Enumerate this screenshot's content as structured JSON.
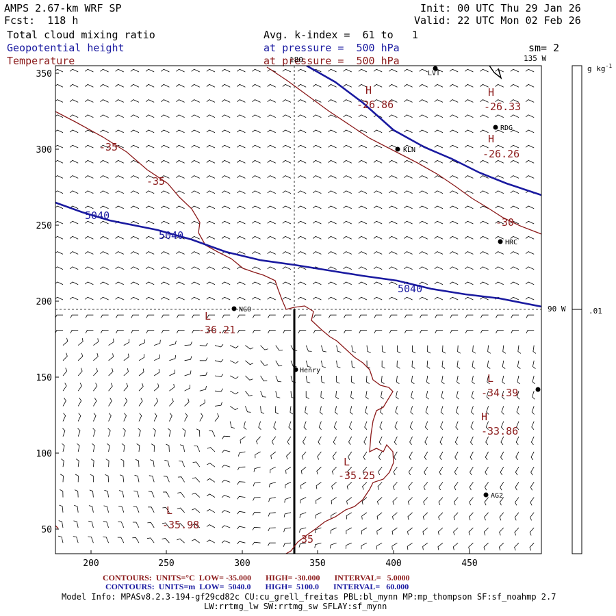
{
  "header": {
    "model": "AMPS 2.67-km WRF SP",
    "forecast": "Fcst:  118 h",
    "init": "Init: 00 UTC Thu 29 Jan 26",
    "valid": "Valid: 22 UTC Mon 02 Feb 26",
    "field1": "Total cloud mixing ratio",
    "field2": "Geopotential height",
    "field3": "Temperature",
    "avg": "Avg. k-index =  61 to   1",
    "pressure1": "at pressure =  500 hPa",
    "pressure2": "at pressure =  500 hPa",
    "smooth": "sm= 2"
  },
  "colors": {
    "height": "#1a1aa0",
    "temperature": "#8b1a1a",
    "text": "#000000"
  },
  "plot": {
    "x_ticks": [
      "200",
      "250",
      "300",
      "350",
      "400",
      "450"
    ],
    "y_ticks": [
      "350",
      "300",
      "250",
      "200",
      "150",
      "100",
      "50"
    ],
    "meridian_labels": [
      "180",
      "135 W",
      "90 W"
    ],
    "colorbar_label": "g kg",
    "colorbar_exp": "-1",
    "colorbar_value": ".01"
  },
  "stations": [
    "LVT",
    "RDG",
    "KLN",
    "HRC",
    "NGO",
    "Henry",
    "AG2"
  ],
  "height_labels": [
    "5040",
    "5040",
    "5040"
  ],
  "temp_labels": [
    "-35",
    "-35",
    "-30",
    "35"
  ],
  "extrema": [
    {
      "mark": "H",
      "value": "-26.86"
    },
    {
      "mark": "H",
      "value": "-26.33"
    },
    {
      "mark": "H",
      "value": "-26.26"
    },
    {
      "mark": "L",
      "value": "-36.21"
    },
    {
      "mark": "L",
      "value": "-34.39"
    },
    {
      "mark": "H",
      "value": "-33.86"
    },
    {
      "mark": "L",
      "value": "-35.25"
    },
    {
      "mark": "L",
      "value": "-35.98"
    }
  ],
  "footer": {
    "temp_contours": "CONTOURS:  UNITS=°C  LOW= -35.000       HIGH= -30.000       INTERVAL=   5.0000",
    "height_contours": "CONTOURS:  UNITS=m  LOW=  5040.0       HIGH=  5100.0       INTERVAL=   60.000",
    "model_info": "Model Info: MPASv8.2.3-194-gf29cd82c CU:cu_grell_freitas PBL:bl_mynn MP:mp_thompson SF:sf_noahmp 2.7",
    "model_info2": "LW:rrtmg_lw SW:rrtmg_sw SFLAY:sf_mynn"
  }
}
